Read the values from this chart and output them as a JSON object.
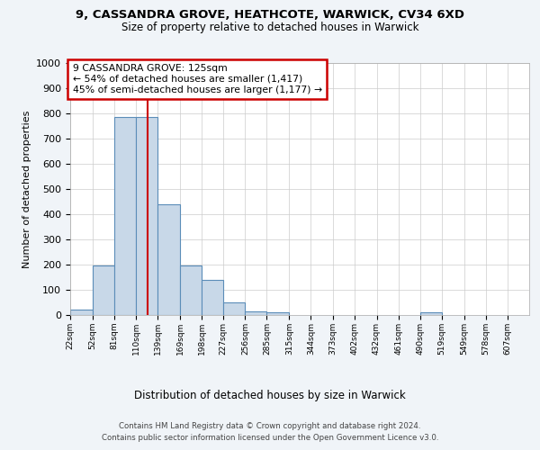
{
  "title1": "9, CASSANDRA GROVE, HEATHCOTE, WARWICK, CV34 6XD",
  "title2": "Size of property relative to detached houses in Warwick",
  "xlabel": "Distribution of detached houses by size in Warwick",
  "ylabel": "Number of detached properties",
  "bar_edges": [
    22,
    52,
    81,
    110,
    139,
    169,
    198,
    227,
    256,
    285,
    315,
    344,
    373,
    402,
    432,
    461,
    490,
    519,
    549,
    578,
    607
  ],
  "bar_heights": [
    20,
    195,
    785,
    785,
    440,
    195,
    140,
    50,
    15,
    10,
    0,
    0,
    0,
    0,
    0,
    0,
    10,
    0,
    0,
    0,
    0
  ],
  "bar_color": "#c8d8e8",
  "bar_edge_color": "#5b8db8",
  "vline_x": 125,
  "vline_color": "#cc0000",
  "annotation_text": "9 CASSANDRA GROVE: 125sqm\n← 54% of detached houses are smaller (1,417)\n45% of semi-detached houses are larger (1,177) →",
  "annotation_box_color": "#ffffff",
  "annotation_box_edge": "#cc0000",
  "ylim": [
    0,
    1000
  ],
  "yticks": [
    0,
    100,
    200,
    300,
    400,
    500,
    600,
    700,
    800,
    900,
    1000
  ],
  "footer1": "Contains HM Land Registry data © Crown copyright and database right 2024.",
  "footer2": "Contains public sector information licensed under the Open Government Licence v3.0.",
  "bg_color": "#f0f4f8",
  "plot_bg_color": "#ffffff",
  "grid_color": "#cccccc"
}
